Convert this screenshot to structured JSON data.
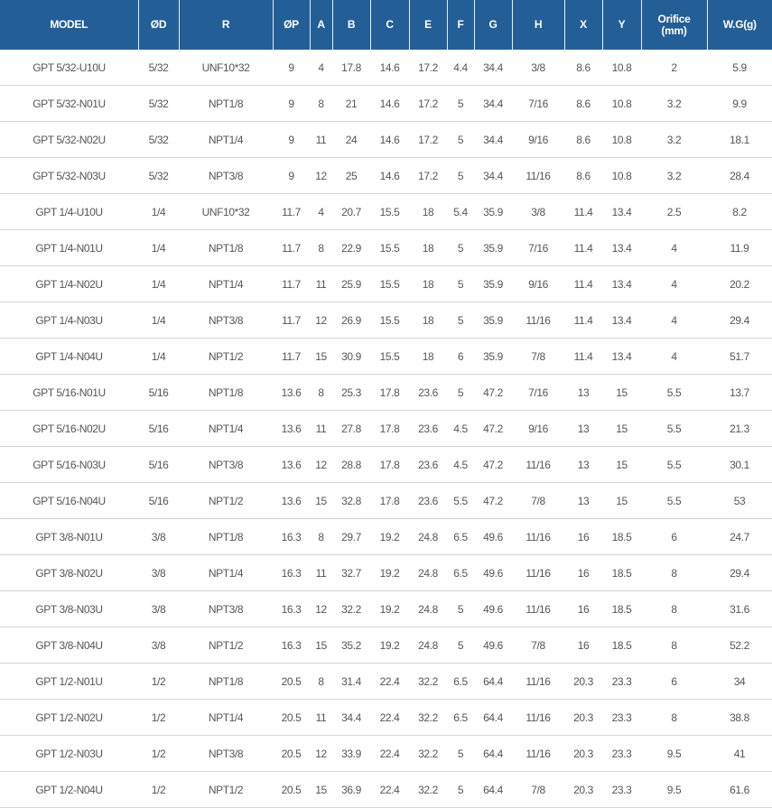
{
  "colors": {
    "header_bg": "#235f96",
    "header_text": "#ffffff",
    "cell_text": "#555555",
    "row_divider": "#d6d6d6"
  },
  "headers": [
    "MODEL",
    "ØD",
    "R",
    "ØP",
    "A",
    "B",
    "C",
    "E",
    "F",
    "G",
    "H",
    "X",
    "Y",
    "Orifice\n(mm)",
    "W.G(g)"
  ],
  "rows": [
    [
      "GPT 5/32-U10U",
      "5/32",
      "UNF10*32",
      "9",
      "4",
      "17.8",
      "14.6",
      "17.2",
      "4.4",
      "34.4",
      "3/8",
      "8.6",
      "10.8",
      "2",
      "5.9"
    ],
    [
      "GPT 5/32-N01U",
      "5/32",
      "NPT1/8",
      "9",
      "8",
      "21",
      "14.6",
      "17.2",
      "5",
      "34.4",
      "7/16",
      "8.6",
      "10.8",
      "3.2",
      "9.9"
    ],
    [
      "GPT 5/32-N02U",
      "5/32",
      "NPT1/4",
      "9",
      "11",
      "24",
      "14.6",
      "17.2",
      "5",
      "34.4",
      "9/16",
      "8.6",
      "10.8",
      "3.2",
      "18.1"
    ],
    [
      "GPT 5/32-N03U",
      "5/32",
      "NPT3/8",
      "9",
      "12",
      "25",
      "14.6",
      "17.2",
      "5",
      "34.4",
      "11/16",
      "8.6",
      "10.8",
      "3.2",
      "28.4"
    ],
    [
      "GPT 1/4-U10U",
      "1/4",
      "UNF10*32",
      "11.7",
      "4",
      "20.7",
      "15.5",
      "18",
      "5.4",
      "35.9",
      "3/8",
      "11.4",
      "13.4",
      "2.5",
      "8.2"
    ],
    [
      "GPT 1/4-N01U",
      "1/4",
      "NPT1/8",
      "11.7",
      "8",
      "22.9",
      "15.5",
      "18",
      "5",
      "35.9",
      "7/16",
      "11.4",
      "13.4",
      "4",
      "11.9"
    ],
    [
      "GPT 1/4-N02U",
      "1/4",
      "NPT1/4",
      "11.7",
      "11",
      "25.9",
      "15.5",
      "18",
      "5",
      "35.9",
      "9/16",
      "11.4",
      "13.4",
      "4",
      "20.2"
    ],
    [
      "GPT 1/4-N03U",
      "1/4",
      "NPT3/8",
      "11.7",
      "12",
      "26.9",
      "15.5",
      "18",
      "5",
      "35.9",
      "11/16",
      "11.4",
      "13.4",
      "4",
      "29.4"
    ],
    [
      "GPT 1/4-N04U",
      "1/4",
      "NPT1/2",
      "11.7",
      "15",
      "30.9",
      "15.5",
      "18",
      "6",
      "35.9",
      "7/8",
      "11.4",
      "13.4",
      "4",
      "51.7"
    ],
    [
      "GPT 5/16-N01U",
      "5/16",
      "NPT1/8",
      "13.6",
      "8",
      "25.3",
      "17.8",
      "23.6",
      "5",
      "47.2",
      "7/16",
      "13",
      "15",
      "5.5",
      "13.7"
    ],
    [
      "GPT 5/16-N02U",
      "5/16",
      "NPT1/4",
      "13.6",
      "11",
      "27.8",
      "17.8",
      "23.6",
      "4.5",
      "47.2",
      "9/16",
      "13",
      "15",
      "5.5",
      "21.3"
    ],
    [
      "GPT 5/16-N03U",
      "5/16",
      "NPT3/8",
      "13.6",
      "12",
      "28.8",
      "17.8",
      "23.6",
      "4.5",
      "47.2",
      "11/16",
      "13",
      "15",
      "5.5",
      "30.1"
    ],
    [
      "GPT 5/16-N04U",
      "5/16",
      "NPT1/2",
      "13.6",
      "15",
      "32.8",
      "17.8",
      "23.6",
      "5.5",
      "47.2",
      "7/8",
      "13",
      "15",
      "5.5",
      "53"
    ],
    [
      "GPT 3/8-N01U",
      "3/8",
      "NPT1/8",
      "16.3",
      "8",
      "29.7",
      "19.2",
      "24.8",
      "6.5",
      "49.6",
      "11/16",
      "16",
      "18.5",
      "6",
      "24.7"
    ],
    [
      "GPT 3/8-N02U",
      "3/8",
      "NPT1/4",
      "16.3",
      "11",
      "32.7",
      "19.2",
      "24.8",
      "6.5",
      "49.6",
      "11/16",
      "16",
      "18.5",
      "8",
      "29.4"
    ],
    [
      "GPT 3/8-N03U",
      "3/8",
      "NPT3/8",
      "16.3",
      "12",
      "32.2",
      "19.2",
      "24.8",
      "5",
      "49.6",
      "11/16",
      "16",
      "18.5",
      "8",
      "31.6"
    ],
    [
      "GPT 3/8-N04U",
      "3/8",
      "NPT1/2",
      "16.3",
      "15",
      "35.2",
      "19.2",
      "24.8",
      "5",
      "49.6",
      "7/8",
      "16",
      "18.5",
      "8",
      "52.2"
    ],
    [
      "GPT 1/2-N01U",
      "1/2",
      "NPT1/8",
      "20.5",
      "8",
      "31.4",
      "22.4",
      "32.2",
      "6.5",
      "64.4",
      "11/16",
      "20.3",
      "23.3",
      "6",
      "34"
    ],
    [
      "GPT 1/2-N02U",
      "1/2",
      "NPT1/4",
      "20.5",
      "11",
      "34.4",
      "22.4",
      "32.2",
      "6.5",
      "64.4",
      "11/16",
      "20.3",
      "23.3",
      "8",
      "38.8"
    ],
    [
      "GPT 1/2-N03U",
      "1/2",
      "NPT3/8",
      "20.5",
      "12",
      "33.9",
      "22.4",
      "32.2",
      "5",
      "64.4",
      "11/16",
      "20.3",
      "23.3",
      "9.5",
      "41"
    ],
    [
      "GPT 1/2-N04U",
      "1/2",
      "NPT1/2",
      "20.5",
      "15",
      "36.9",
      "22.4",
      "32.2",
      "5",
      "64.4",
      "7/8",
      "20.3",
      "23.3",
      "9.5",
      "61.6"
    ]
  ]
}
